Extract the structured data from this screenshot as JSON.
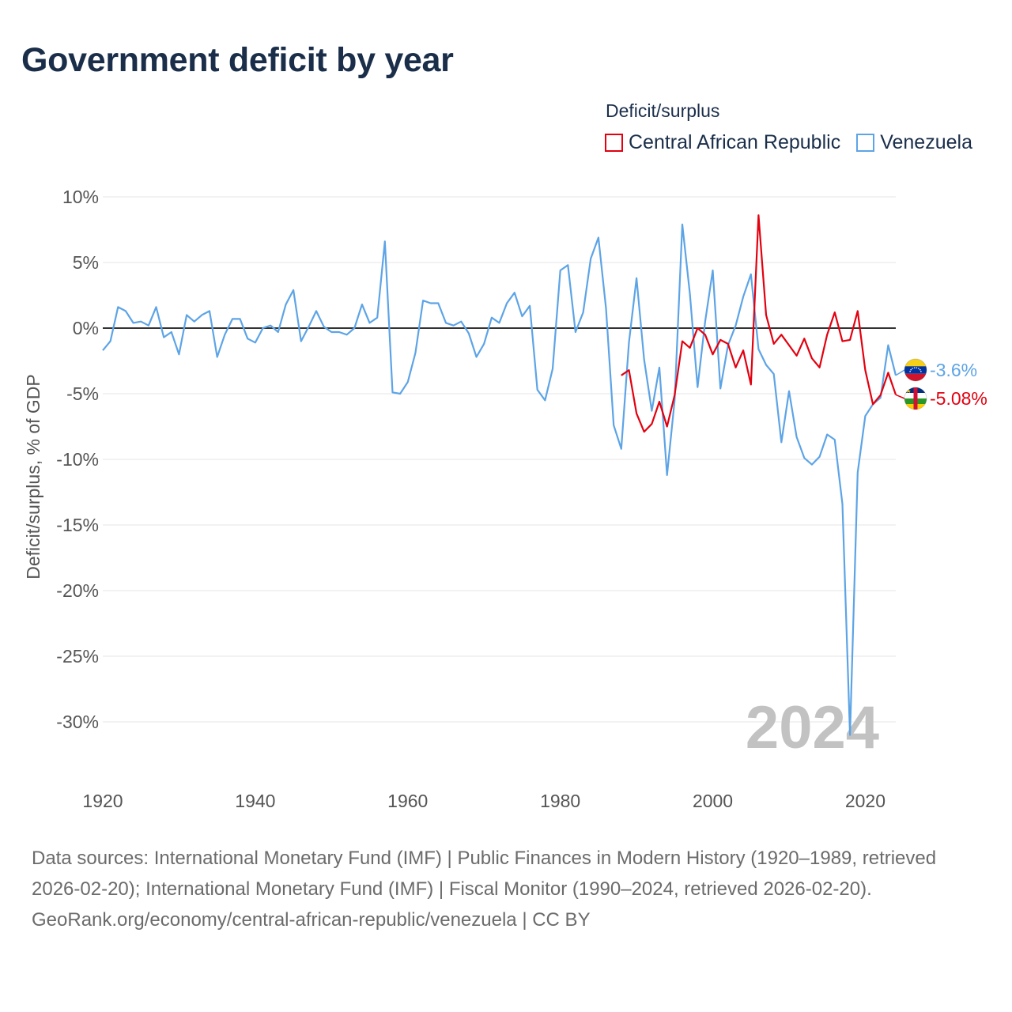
{
  "chart_data": {
    "type": "line",
    "title": "Government deficit by year",
    "legend_title": "Deficit/surplus",
    "ylabel": "Deficit/surplus, % of GDP",
    "xlabel": "",
    "xlim": [
      1920,
      2024
    ],
    "ylim": [
      -34,
      10
    ],
    "y_ticks": [
      10,
      5,
      0,
      -5,
      -10,
      -15,
      -20,
      -25,
      -30
    ],
    "y_tick_labels": [
      "10%",
      "5%",
      "0%",
      "-5%",
      "-10%",
      "-15%",
      "-20%",
      "-25%",
      "-30%"
    ],
    "x_ticks": [
      1920,
      1940,
      1960,
      1980,
      2000,
      2020
    ],
    "x_tick_labels": [
      "1920",
      "1940",
      "1960",
      "1980",
      "2000",
      "2020"
    ],
    "year_watermark": "2024",
    "series": [
      {
        "name": "Central African Republic",
        "color": "#e3000f",
        "end_label": "-5.08%",
        "flag": "central-african-republic-flag",
        "points": [
          [
            1988,
            -3.6
          ],
          [
            1989,
            -3.2
          ],
          [
            1990,
            -6.5
          ],
          [
            1991,
            -7.9
          ],
          [
            1992,
            -7.3
          ],
          [
            1993,
            -5.6
          ],
          [
            1994,
            -7.5
          ],
          [
            1995,
            -5.1
          ],
          [
            1996,
            -1
          ],
          [
            1997,
            -1.5
          ],
          [
            1998,
            0
          ],
          [
            1999,
            -0.5
          ],
          [
            2000,
            -2
          ],
          [
            2001,
            -0.9
          ],
          [
            2002,
            -1.2
          ],
          [
            2003,
            -3
          ],
          [
            2004,
            -1.7
          ],
          [
            2005,
            -4.3
          ],
          [
            2006,
            8.6
          ],
          [
            2007,
            1
          ],
          [
            2008,
            -1.2
          ],
          [
            2009,
            -0.5
          ],
          [
            2010,
            -1.3
          ],
          [
            2011,
            -2.1
          ],
          [
            2012,
            -0.8
          ],
          [
            2013,
            -2.3
          ],
          [
            2014,
            -3
          ],
          [
            2015,
            -0.5
          ],
          [
            2016,
            1.2
          ],
          [
            2017,
            -1
          ],
          [
            2018,
            -0.9
          ],
          [
            2019,
            1.3
          ],
          [
            2020,
            -3.2
          ],
          [
            2021,
            -5.8
          ],
          [
            2022,
            -5.1
          ],
          [
            2023,
            -3.4
          ],
          [
            2024,
            -5.08
          ]
        ]
      },
      {
        "name": "Venezuela",
        "color": "#5da4e6",
        "end_label": "-3.6%",
        "flag": "venezuela-flag",
        "points": [
          [
            1920,
            -1.7
          ],
          [
            1921,
            -1
          ],
          [
            1922,
            1.6
          ],
          [
            1923,
            1.3
          ],
          [
            1924,
            0.4
          ],
          [
            1925,
            0.5
          ],
          [
            1926,
            0.2
          ],
          [
            1927,
            1.6
          ],
          [
            1928,
            -0.7
          ],
          [
            1929,
            -0.3
          ],
          [
            1930,
            -2
          ],
          [
            1931,
            1
          ],
          [
            1932,
            0.5
          ],
          [
            1933,
            1
          ],
          [
            1934,
            1.3
          ],
          [
            1935,
            -2.2
          ],
          [
            1936,
            -0.5
          ],
          [
            1937,
            0.7
          ],
          [
            1938,
            0.7
          ],
          [
            1939,
            -0.8
          ],
          [
            1940,
            -1.1
          ],
          [
            1941,
            0
          ],
          [
            1942,
            0.2
          ],
          [
            1943,
            -0.3
          ],
          [
            1944,
            1.8
          ],
          [
            1945,
            2.9
          ],
          [
            1946,
            -1
          ],
          [
            1947,
            0.1
          ],
          [
            1948,
            1.3
          ],
          [
            1949,
            0.1
          ],
          [
            1950,
            -0.3
          ],
          [
            1951,
            -0.3
          ],
          [
            1952,
            -0.5
          ],
          [
            1953,
            0
          ],
          [
            1954,
            1.8
          ],
          [
            1955,
            0.4
          ],
          [
            1956,
            0.8
          ],
          [
            1957,
            6.6
          ],
          [
            1958,
            -4.9
          ],
          [
            1959,
            -5
          ],
          [
            1960,
            -4.1
          ],
          [
            1961,
            -1.9
          ],
          [
            1962,
            2.1
          ],
          [
            1963,
            1.9
          ],
          [
            1964,
            1.9
          ],
          [
            1965,
            0.4
          ],
          [
            1966,
            0.2
          ],
          [
            1967,
            0.5
          ],
          [
            1968,
            -0.4
          ],
          [
            1969,
            -2.2
          ],
          [
            1970,
            -1.2
          ],
          [
            1971,
            0.8
          ],
          [
            1972,
            0.4
          ],
          [
            1973,
            1.9
          ],
          [
            1974,
            2.7
          ],
          [
            1975,
            0.9
          ],
          [
            1976,
            1.7
          ],
          [
            1977,
            -4.7
          ],
          [
            1978,
            -5.5
          ],
          [
            1979,
            -3.1
          ],
          [
            1980,
            4.4
          ],
          [
            1981,
            4.8
          ],
          [
            1982,
            -0.3
          ],
          [
            1983,
            1.2
          ],
          [
            1984,
            5.3
          ],
          [
            1985,
            6.9
          ],
          [
            1986,
            1.5
          ],
          [
            1987,
            -7.4
          ],
          [
            1988,
            -9.2
          ],
          [
            1989,
            -1.1
          ],
          [
            1990,
            3.8
          ],
          [
            1991,
            -2.4
          ],
          [
            1992,
            -6.3
          ],
          [
            1993,
            -3
          ],
          [
            1994,
            -11.2
          ],
          [
            1995,
            -5.5
          ],
          [
            1996,
            7.9
          ],
          [
            1997,
            2.6
          ],
          [
            1998,
            -4.5
          ],
          [
            1999,
            0.5
          ],
          [
            2000,
            4.4
          ],
          [
            2001,
            -4.6
          ],
          [
            2002,
            -1.3
          ],
          [
            2003,
            0.2
          ],
          [
            2004,
            2.4
          ],
          [
            2005,
            4.1
          ],
          [
            2006,
            -1.6
          ],
          [
            2007,
            -2.8
          ],
          [
            2008,
            -3.5
          ],
          [
            2009,
            -8.7
          ],
          [
            2010,
            -4.8
          ],
          [
            2011,
            -8.3
          ],
          [
            2012,
            -9.9
          ],
          [
            2013,
            -10.4
          ],
          [
            2014,
            -9.8
          ],
          [
            2015,
            -8.1
          ],
          [
            2016,
            -8.5
          ],
          [
            2017,
            -13.4
          ],
          [
            2018,
            -31
          ],
          [
            2019,
            -11
          ],
          [
            2020,
            -6.7
          ],
          [
            2021,
            -5.8
          ],
          [
            2022,
            -5.3
          ],
          [
            2023,
            -1.3
          ],
          [
            2024,
            -3.6
          ]
        ]
      }
    ]
  },
  "sources": {
    "line1": "Data sources: International Monetary Fund (IMF) | Public Finances in Modern History (1920–1989, retrieved 2026-02-20); International Monetary Fund (IMF) | Fiscal Monitor (1990–2024, retrieved 2026-02-20).",
    "line2": "GeoRank.org/economy/central-african-republic/venezuela | CC BY"
  }
}
